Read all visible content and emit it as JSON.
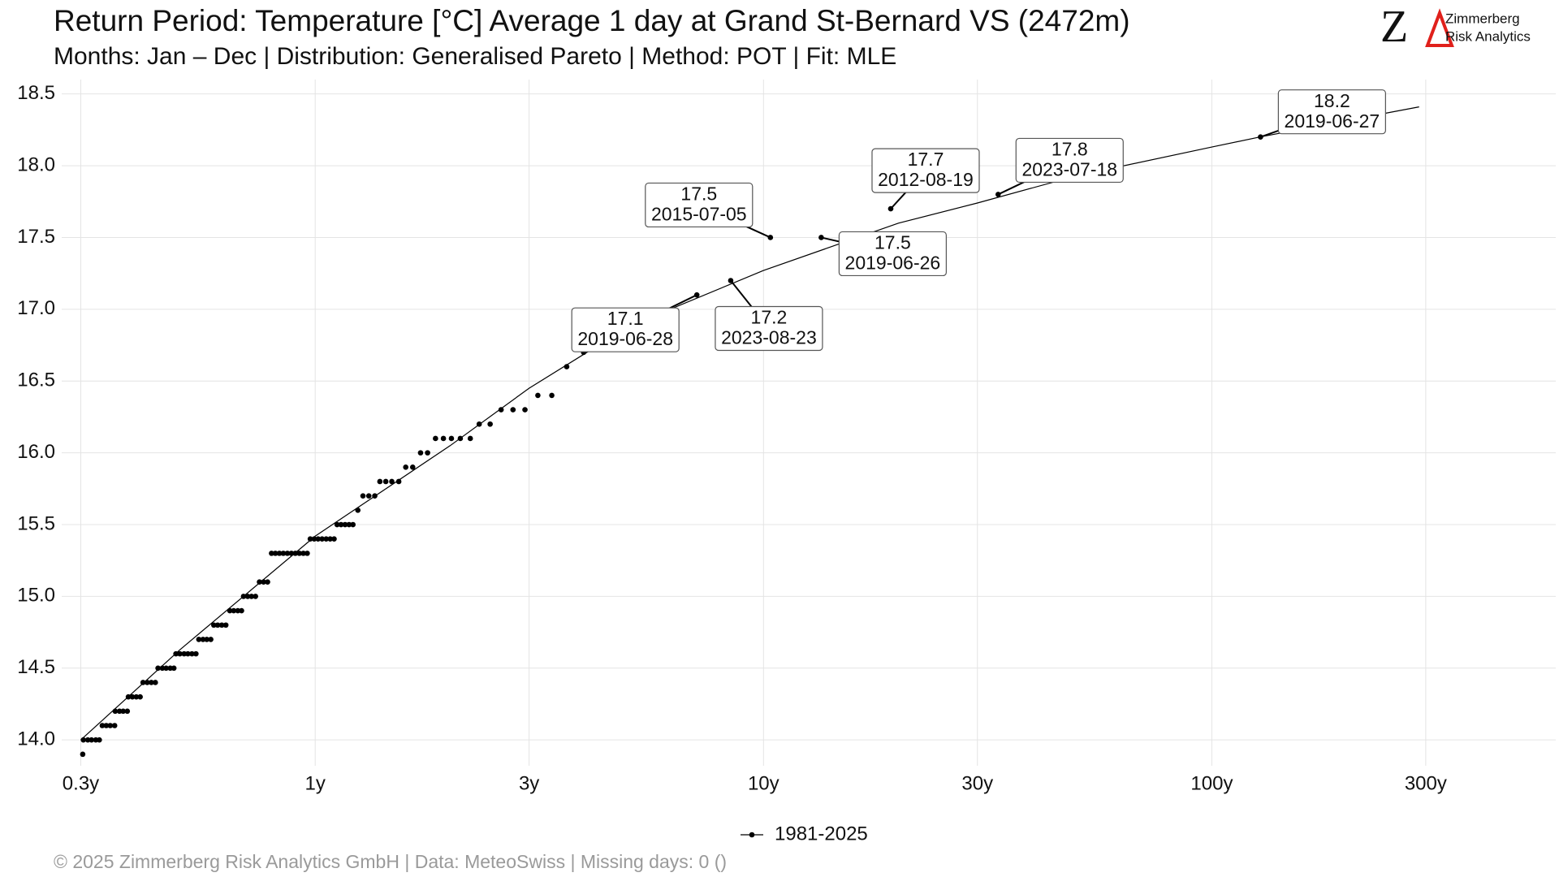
{
  "chart_data": {
    "type": "scatter",
    "title": "Return Period: Temperature [°C] Average 1 day at Grand St-Bernard  VS (2472m)",
    "subtitle": "Months: Jan – Dec | Distribution: Generalised Pareto | Method: POT | Fit: MLE",
    "caption": "©  2025 Zimmerberg Risk Analytics GmbH | Data: MeteoSwiss | Missing days: 0 ()",
    "logo": {
      "mark": "Z",
      "name": "Zimmerberg",
      "tagline": "Risk Analytics"
    },
    "log_x": true,
    "grid": true,
    "legend": "bottom",
    "xlim": [
      0.272,
      585
    ],
    "ylim": [
      13.82,
      18.6
    ],
    "xticks": [
      {
        "value": 0.3,
        "label": "0.3y"
      },
      {
        "value": 1,
        "label": "1y"
      },
      {
        "value": 3,
        "label": "3y"
      },
      {
        "value": 10,
        "label": "10y"
      },
      {
        "value": 30,
        "label": "30y"
      },
      {
        "value": 100,
        "label": "100y"
      },
      {
        "value": 300,
        "label": "300y"
      }
    ],
    "yticks": [
      {
        "value": 14,
        "label": "14.0"
      },
      {
        "value": 14.5,
        "label": "14.5"
      },
      {
        "value": 15,
        "label": "15.0"
      },
      {
        "value": 15.5,
        "label": "15.5"
      },
      {
        "value": 16,
        "label": "16.0"
      },
      {
        "value": 16.5,
        "label": "16.5"
      },
      {
        "value": 17,
        "label": "17.0"
      },
      {
        "value": 17.5,
        "label": "17.5"
      },
      {
        "value": 18,
        "label": "18.0"
      },
      {
        "value": 18.5,
        "label": "18.5"
      }
    ],
    "series": [
      {
        "name": "1981-2025",
        "color": "#000000",
        "x": [
          0.303,
          0.304,
          0.311,
          0.317,
          0.324,
          0.33,
          0.335,
          0.342,
          0.349,
          0.357,
          0.358,
          0.366,
          0.373,
          0.381,
          0.383,
          0.391,
          0.399,
          0.407,
          0.413,
          0.422,
          0.431,
          0.44,
          0.446,
          0.456,
          0.465,
          0.475,
          0.484,
          0.489,
          0.499,
          0.51,
          0.52,
          0.531,
          0.542,
          0.55,
          0.562,
          0.573,
          0.585,
          0.594,
          0.606,
          0.619,
          0.632,
          0.645,
          0.658,
          0.672,
          0.685,
          0.692,
          0.707,
          0.721,
          0.736,
          0.751,
          0.767,
          0.783,
          0.799,
          0.815,
          0.832,
          0.849,
          0.867,
          0.885,
          0.903,
          0.922,
          0.941,
          0.96,
          0.975,
          0.995,
          1.015,
          1.036,
          1.058,
          1.08,
          1.102,
          1.119,
          1.142,
          1.166,
          1.19,
          1.214,
          1.245,
          1.278,
          1.317,
          1.358,
          1.394,
          1.437,
          1.482,
          1.536,
          1.592,
          1.65,
          1.718,
          1.781,
          1.855,
          1.932,
          2.013,
          2.107,
          2.218,
          2.322,
          2.456,
          2.598,
          2.762,
          2.937,
          3.138,
          3.371,
          3.639,
          3.969,
          7.1,
          8.45,
          10.36,
          13.45,
          19.22,
          33.37,
          128.4
        ],
        "values": [
          13.9,
          14.0,
          14.0,
          14.0,
          14.0,
          14.0,
          14.1,
          14.1,
          14.1,
          14.1,
          14.2,
          14.2,
          14.2,
          14.2,
          14.3,
          14.3,
          14.3,
          14.3,
          14.4,
          14.4,
          14.4,
          14.4,
          14.5,
          14.5,
          14.5,
          14.5,
          14.5,
          14.6,
          14.6,
          14.6,
          14.6,
          14.6,
          14.6,
          14.7,
          14.7,
          14.7,
          14.7,
          14.8,
          14.8,
          14.8,
          14.8,
          14.9,
          14.9,
          14.9,
          14.9,
          15.0,
          15.0,
          15.0,
          15.0,
          15.1,
          15.1,
          15.1,
          15.3,
          15.3,
          15.3,
          15.3,
          15.3,
          15.3,
          15.3,
          15.3,
          15.3,
          15.3,
          15.4,
          15.4,
          15.4,
          15.4,
          15.4,
          15.4,
          15.4,
          15.5,
          15.5,
          15.5,
          15.5,
          15.5,
          15.6,
          15.7,
          15.7,
          15.7,
          15.8,
          15.8,
          15.8,
          15.8,
          15.9,
          15.9,
          16.0,
          16.0,
          16.1,
          16.1,
          16.1,
          16.1,
          16.1,
          16.2,
          16.2,
          16.3,
          16.3,
          16.3,
          16.4,
          16.4,
          16.6,
          16.7,
          17.1,
          17.2,
          17.5,
          17.5,
          17.7,
          17.8,
          18.2
        ],
        "dates": [
          null,
          null,
          null,
          null,
          null,
          null,
          null,
          null,
          null,
          null,
          null,
          null,
          null,
          null,
          null,
          null,
          null,
          null,
          null,
          null,
          null,
          null,
          null,
          null,
          null,
          null,
          null,
          null,
          null,
          null,
          null,
          null,
          null,
          null,
          null,
          null,
          null,
          null,
          null,
          null,
          null,
          null,
          null,
          null,
          null,
          null,
          null,
          null,
          null,
          null,
          null,
          null,
          null,
          null,
          null,
          null,
          null,
          null,
          null,
          null,
          null,
          null,
          null,
          null,
          null,
          null,
          null,
          null,
          null,
          null,
          null,
          null,
          null,
          null,
          null,
          null,
          null,
          null,
          null,
          null,
          null,
          null,
          null,
          null,
          null,
          null,
          null,
          null,
          null,
          null,
          null,
          null,
          null,
          null,
          null,
          null,
          null,
          null,
          null,
          null,
          "2019-06-28",
          "2023-08-23",
          "2015-07-05",
          "2019-06-26",
          "2012-08-19",
          "2023-07-18",
          "2019-06-27"
        ]
      }
    ],
    "fit": {
      "color": "#000000",
      "x": [
        0.3,
        0.5,
        1,
        2,
        3,
        5,
        10,
        20,
        30,
        50,
        100,
        128,
        290
      ],
      "values": [
        14.0,
        14.63,
        15.42,
        16.05,
        16.45,
        16.88,
        17.27,
        17.6,
        17.74,
        17.93,
        18.13,
        18.2,
        18.41
      ]
    }
  }
}
